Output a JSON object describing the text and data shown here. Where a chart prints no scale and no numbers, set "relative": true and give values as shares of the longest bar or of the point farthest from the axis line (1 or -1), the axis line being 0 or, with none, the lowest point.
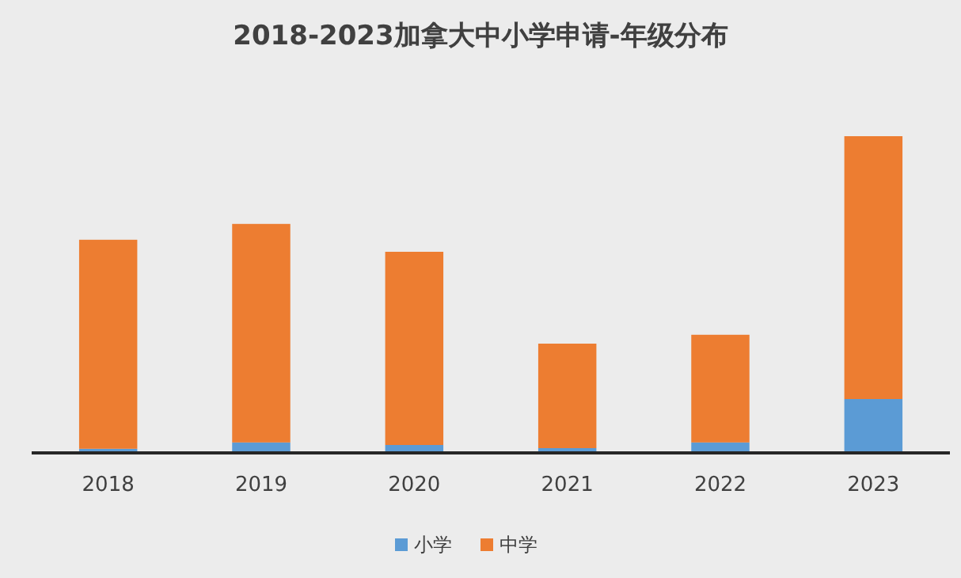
{
  "chart_data": {
    "type": "bar",
    "title": "2018-2023加拿大中小学申请-年级分布",
    "categories": [
      "2018",
      "2019",
      "2020",
      "2021",
      "2022",
      "2023"
    ],
    "stacked": true,
    "relative": true,
    "legend": "bottom",
    "series": [
      {
        "name": "小学",
        "color": "#5b9bd5",
        "values": [
          0.013,
          0.033,
          0.025,
          0.015,
          0.033,
          0.17
        ]
      },
      {
        "name": "中学",
        "color": "#ed7d31",
        "values": [
          0.66,
          0.69,
          0.61,
          0.33,
          0.34,
          0.83
        ]
      }
    ]
  }
}
